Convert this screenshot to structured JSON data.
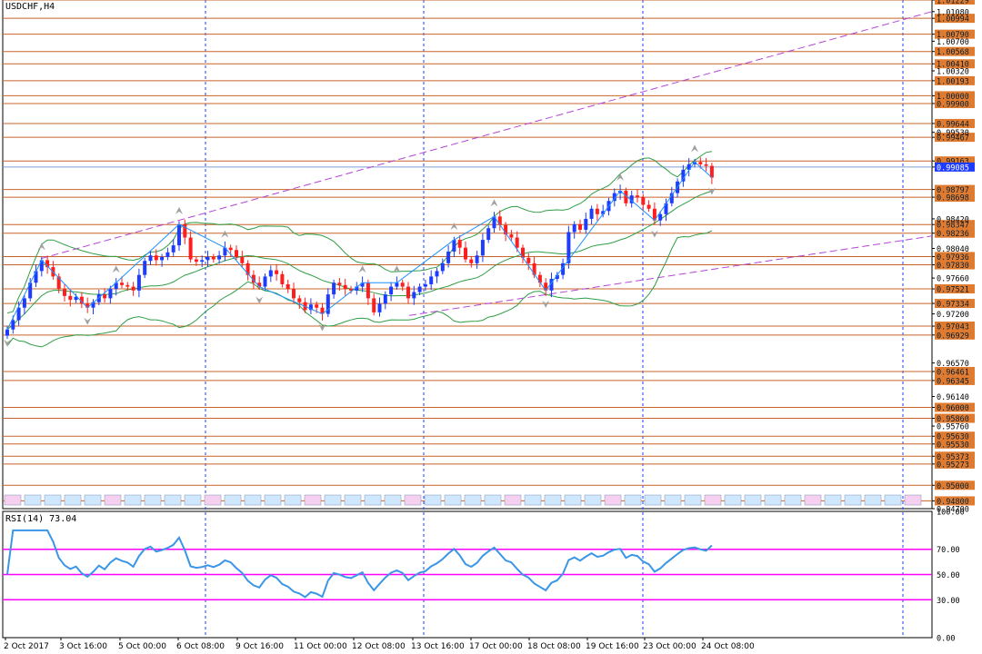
{
  "symbol_label": "USDCHF,H4",
  "indicator_label": "RSI(14) 73.04",
  "colors": {
    "background": "#ffffff",
    "bull_candle": "#1e3cff",
    "bear_candle": "#ff1e1e",
    "level_line": "#c8642a",
    "level_tag_fill": "#e07a2e",
    "current_tag_fill": "#1e3cff",
    "bollinger": "#2f9e44",
    "zigzag": "#1e90ff",
    "trend_line": "#b445d6",
    "rsi_line": "#3a96e6",
    "rsi_levels": "#ff00ff",
    "grid": "#1e3cff",
    "axis_text": "#000000"
  },
  "chart_data": [
    {
      "type": "line",
      "title": "USDCHF,H4",
      "ylim": [
        0.947,
        1.01229
      ],
      "y_ticks": [
        "1.01229",
        "1.01080",
        "1.00994",
        "1.00790",
        "1.00700",
        "1.00568",
        "1.00410",
        "1.00320",
        "1.00193",
        "1.00000",
        "0.99900",
        "0.99644",
        "0.99530",
        "0.99467",
        "0.99163",
        "0.99085",
        "0.98797",
        "0.98698",
        "0.98420",
        "0.98347",
        "0.98236",
        "0.98040",
        "0.97936",
        "0.97830",
        "0.97660",
        "0.97521",
        "0.97334",
        "0.97200",
        "0.97043",
        "0.96929",
        "0.96570",
        "0.96461",
        "0.96345",
        "0.96140",
        "0.96000",
        "0.95860",
        "0.95760",
        "0.95630",
        "0.95530",
        "0.95373",
        "0.95273",
        "0.95000",
        "0.94800",
        "0.94700"
      ],
      "levels": [
        1.01229,
        1.00994,
        1.0079,
        1.00568,
        1.0041,
        1.00193,
        1.0,
        0.999,
        0.99644,
        0.99467,
        0.99163,
        0.98797,
        0.98698,
        0.98347,
        0.98236,
        0.97936,
        0.9783,
        0.97521,
        0.97334,
        0.97043,
        0.96929,
        0.96461,
        0.96345,
        0.96,
        0.9586,
        0.9563,
        0.9553,
        0.95373,
        0.95273,
        0.95,
        0.948
      ],
      "current_price": 0.99085,
      "x_labels": [
        "2 Oct 2017",
        "3 Oct 16:00",
        "5 Oct 00:00",
        "6 Oct 08:00",
        "9 Oct 16:00",
        "11 Oct 00:00",
        "12 Oct 08:00",
        "13 Oct 16:00",
        "17 Oct 00:00",
        "18 Oct 08:00",
        "19 Oct 16:00",
        "23 Oct 00:00",
        "24 Oct 08:00"
      ],
      "series": [
        {
          "name": "USDCHF",
          "close": [
            0.97,
            0.9712,
            0.9728,
            0.974,
            0.976,
            0.9775,
            0.9789,
            0.978,
            0.9768,
            0.9752,
            0.9743,
            0.9738,
            0.9742,
            0.9733,
            0.9728,
            0.9735,
            0.9745,
            0.974,
            0.9752,
            0.976,
            0.9757,
            0.9755,
            0.975,
            0.977,
            0.9788,
            0.9795,
            0.9789,
            0.9793,
            0.9799,
            0.9808,
            0.9835,
            0.9818,
            0.979,
            0.9787,
            0.9789,
            0.9793,
            0.979,
            0.9795,
            0.9805,
            0.9802,
            0.9793,
            0.9785,
            0.977,
            0.976,
            0.9755,
            0.9768,
            0.9776,
            0.9771,
            0.9758,
            0.9752,
            0.974,
            0.9735,
            0.9725,
            0.9732,
            0.9728,
            0.972,
            0.9745,
            0.976,
            0.9757,
            0.9752,
            0.975,
            0.9755,
            0.976,
            0.974,
            0.9722,
            0.9733,
            0.9745,
            0.9755,
            0.976,
            0.9755,
            0.974,
            0.9748,
            0.9755,
            0.9758,
            0.9768,
            0.9775,
            0.9785,
            0.98,
            0.9815,
            0.9805,
            0.979,
            0.9785,
            0.9795,
            0.9815,
            0.983,
            0.9845,
            0.9834,
            0.9822,
            0.9818,
            0.9805,
            0.9792,
            0.9785,
            0.977,
            0.976,
            0.975,
            0.9765,
            0.977,
            0.9785,
            0.9825,
            0.9835,
            0.9828,
            0.9842,
            0.9855,
            0.9848,
            0.9852,
            0.9865,
            0.9875,
            0.9878,
            0.9862,
            0.9872,
            0.987,
            0.986,
            0.9855,
            0.984,
            0.9848,
            0.9862,
            0.9875,
            0.989,
            0.9905,
            0.9912,
            0.9915,
            0.9912,
            0.991,
            0.9895
          ]
        },
        {
          "name": "RSI",
          "ylim": [
            0,
            100
          ],
          "y_ticks": [
            "100.00",
            "70.00",
            "50.00",
            "30.00",
            "0.00"
          ],
          "levels": [
            70,
            50,
            30
          ],
          "last_value": 73.04
        }
      ]
    }
  ]
}
